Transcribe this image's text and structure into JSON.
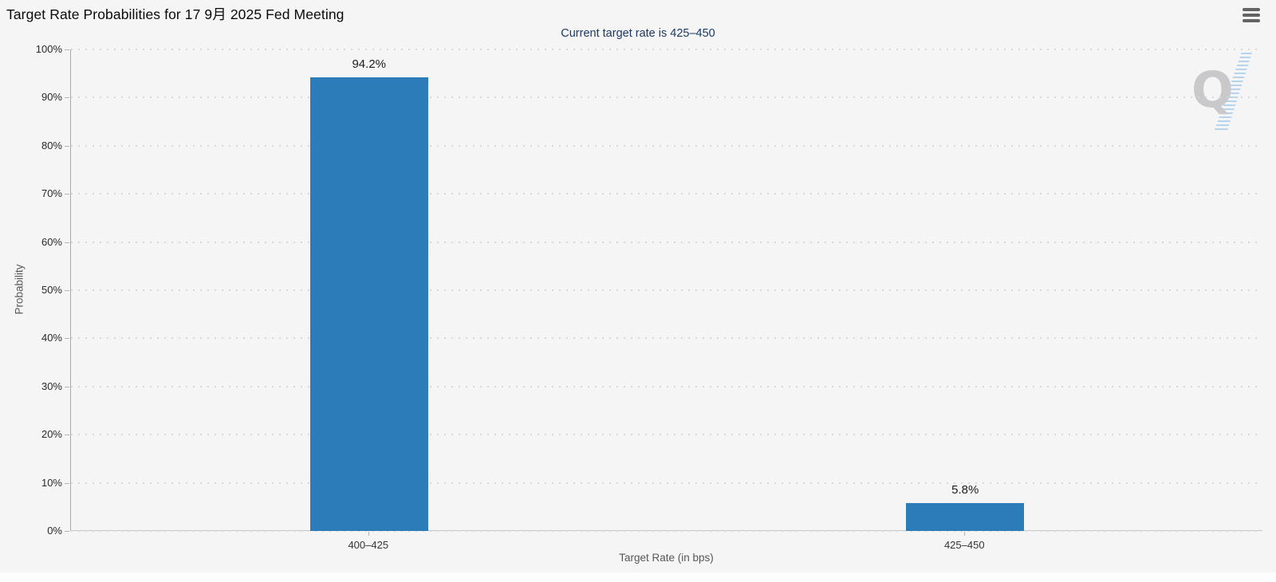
{
  "header": {
    "title": "Target Rate Probabilities for 17 9月 2025 Fed Meeting",
    "subtitle": "Current target rate is 425–450"
  },
  "menu": {
    "icon": "hamburger-menu-icon"
  },
  "watermark": {
    "letter": "Q"
  },
  "colors": {
    "bar": "#2b7cb9",
    "background": "#f5f5f6",
    "subtitle_text": "#1c3a66",
    "grid_dots": "#d7d7d9"
  },
  "chart_data": {
    "type": "bar",
    "title": "Target Rate Probabilities for 17 9月 2025 Fed Meeting",
    "subtitle": "Current target rate is 425–450",
    "categories": [
      "400–425",
      "425–450"
    ],
    "values": [
      94.2,
      5.8
    ],
    "value_labels": [
      "94.2%",
      "5.8%"
    ],
    "xlabel": "Target Rate (in bps)",
    "ylabel": "Probability",
    "ylim": [
      0,
      100
    ],
    "y_ticks": [
      0,
      10,
      20,
      30,
      40,
      50,
      60,
      70,
      80,
      90,
      100
    ],
    "y_tick_labels": [
      "0%",
      "10%",
      "20%",
      "30%",
      "40%",
      "50%",
      "60%",
      "70%",
      "80%",
      "90%",
      "100%"
    ],
    "grid": "horizontal-dotted",
    "legend_position": "none",
    "bar_color": "#2b7cb9"
  }
}
